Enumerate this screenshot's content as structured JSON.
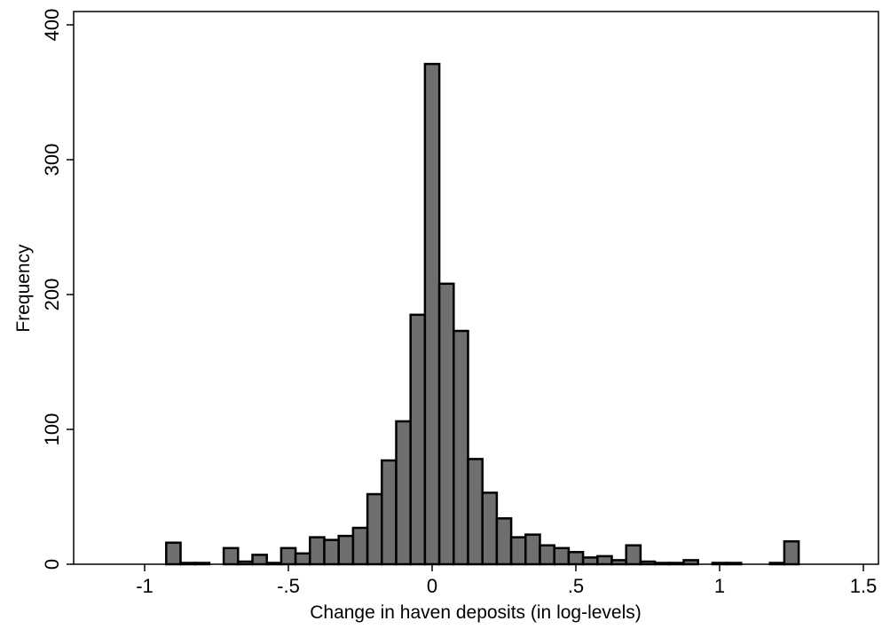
{
  "chart_data": {
    "type": "bar",
    "title": "",
    "xlabel": "Change in haven deposits (in log-levels)",
    "ylabel": "Frequency",
    "xlim": [
      -1.25,
      1.55
    ],
    "ylim": [
      0,
      400
    ],
    "xticks": [
      -1,
      -0.5,
      0,
      0.5,
      1,
      1.5
    ],
    "xtick_labels": [
      "-1",
      "-.5",
      "0",
      ".5",
      "1",
      "1.5"
    ],
    "yticks": [
      0,
      100,
      200,
      300,
      400
    ],
    "ytick_labels": [
      "0",
      "100",
      "200",
      "300",
      "400"
    ],
    "grid": false,
    "bin_width": 0.05,
    "bin_centers": [
      -0.9,
      -0.85,
      -0.8,
      -0.75,
      -0.7,
      -0.65,
      -0.6,
      -0.55,
      -0.5,
      -0.45,
      -0.4,
      -0.35,
      -0.3,
      -0.25,
      -0.2,
      -0.15,
      -0.1,
      -0.05,
      0.0,
      0.05,
      0.1,
      0.15,
      0.2,
      0.25,
      0.3,
      0.35,
      0.4,
      0.45,
      0.5,
      0.55,
      0.6,
      0.65,
      0.7,
      0.75,
      0.8,
      0.85,
      0.9,
      0.95,
      1.0,
      1.05,
      1.1,
      1.15,
      1.2,
      1.25
    ],
    "values": [
      16,
      1,
      1,
      0,
      12,
      2,
      7,
      1,
      12,
      8,
      20,
      18,
      21,
      27,
      52,
      77,
      106,
      185,
      371,
      208,
      173,
      78,
      53,
      34,
      20,
      22,
      14,
      12,
      9,
      5,
      6,
      3,
      14,
      2,
      1,
      1,
      3,
      0,
      1,
      1,
      0,
      0,
      1,
      17
    ]
  }
}
